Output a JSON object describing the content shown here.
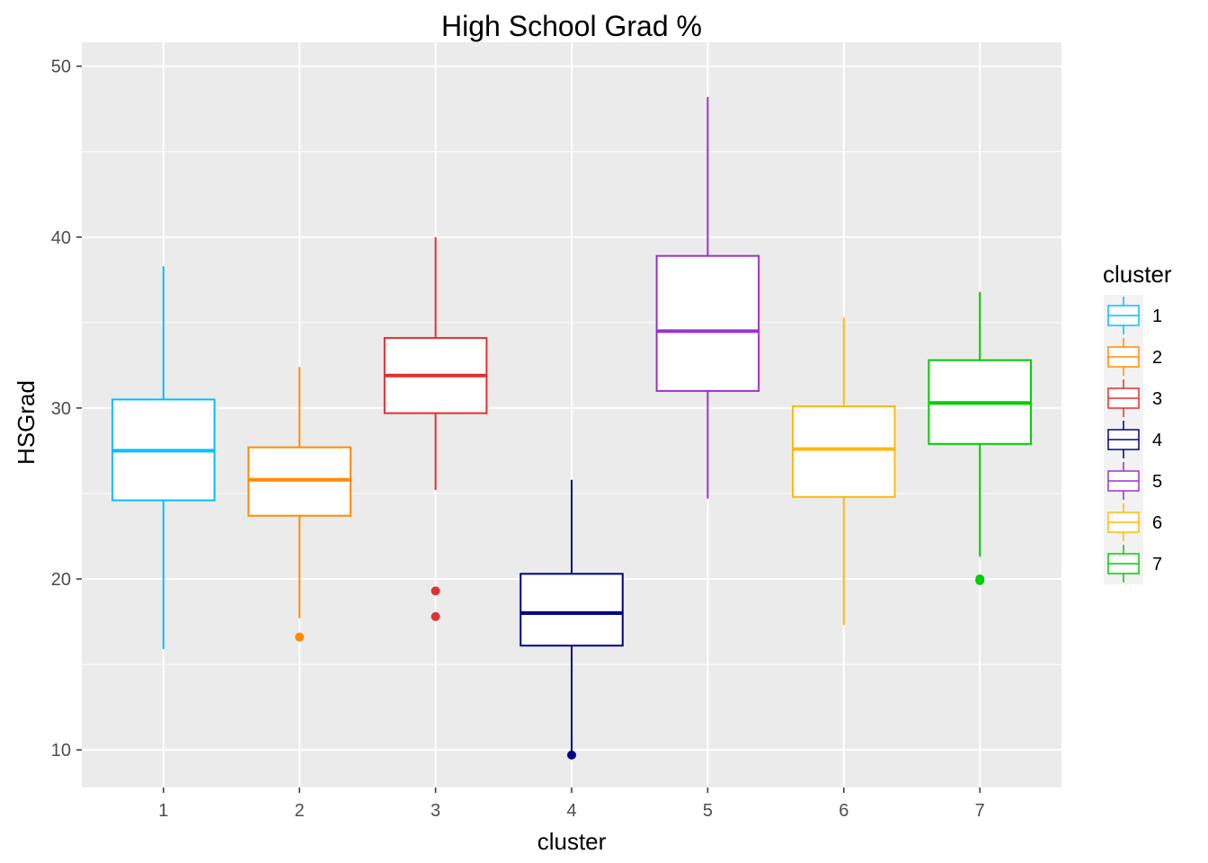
{
  "chart_data": {
    "type": "box",
    "title": "High School Grad %",
    "xlabel": "cluster",
    "ylabel": "HSGrad",
    "categories": [
      "1",
      "2",
      "3",
      "4",
      "5",
      "6",
      "7"
    ],
    "ylim": [
      7.8,
      51.4
    ],
    "yticks": [
      10,
      20,
      30,
      40,
      50
    ],
    "grid": true,
    "legend": {
      "title": "cluster",
      "position": "right"
    },
    "series": [
      {
        "name": "1",
        "color": "#00bfff",
        "min": 15.9,
        "q1": 24.6,
        "median": 27.5,
        "q3": 30.5,
        "max": 38.3,
        "outliers": []
      },
      {
        "name": "2",
        "color": "#ff8c00",
        "min": 17.7,
        "q1": 23.7,
        "median": 25.8,
        "q3": 27.7,
        "max": 32.4,
        "outliers": [
          16.6
        ]
      },
      {
        "name": "3",
        "color": "#e03131",
        "min": 25.2,
        "q1": 29.7,
        "median": 31.9,
        "q3": 34.1,
        "max": 40.0,
        "outliers": [
          19.3,
          17.8
        ]
      },
      {
        "name": "4",
        "color": "#00008b",
        "min": 9.9,
        "q1": 16.1,
        "median": 18.0,
        "q3": 20.3,
        "max": 25.8,
        "outliers": [
          9.7
        ]
      },
      {
        "name": "5",
        "color": "#9932cc",
        "min": 24.7,
        "q1": 31.0,
        "median": 34.5,
        "q3": 38.9,
        "max": 48.2,
        "outliers": []
      },
      {
        "name": "6",
        "color": "#ffb90f",
        "min": 17.3,
        "q1": 24.8,
        "median": 27.6,
        "q3": 30.1,
        "max": 35.3,
        "outliers": []
      },
      {
        "name": "7",
        "color": "#00cd00",
        "min": 21.3,
        "q1": 27.9,
        "median": 30.3,
        "q3": 32.8,
        "max": 36.8,
        "outliers": [
          20.0,
          19.9
        ]
      }
    ]
  }
}
